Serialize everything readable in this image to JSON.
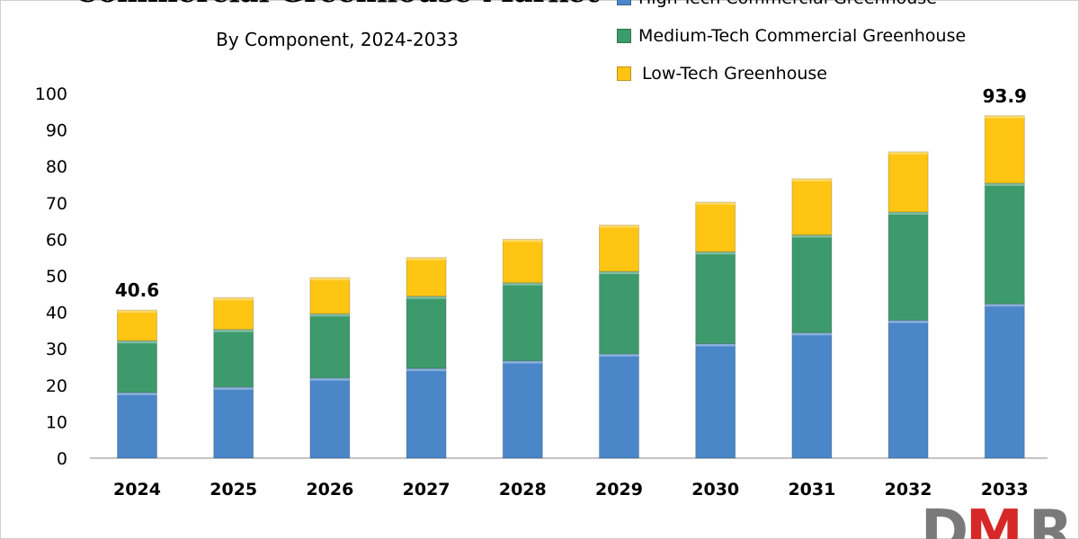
{
  "chart_data": {
    "type": "bar",
    "stacked": true,
    "title": "Commercial Greenhouse Market",
    "subtitle": "By Component,  2024-2033",
    "categories": [
      "2024",
      "2025",
      "2026",
      "2027",
      "2028",
      "2029",
      "2030",
      "2031",
      "2032",
      "2033"
    ],
    "series": [
      {
        "name": "High-Tech Commercial Greenhouse",
        "color": "#4a86c8",
        "values": [
          18.0,
          19.5,
          22.0,
          24.6,
          26.7,
          28.6,
          31.4,
          34.4,
          37.8,
          42.3
        ]
      },
      {
        "name": "Medium-Tech Commercial Greenhouse",
        "color": "#3d9a6c",
        "values": [
          14.2,
          15.8,
          17.6,
          19.8,
          21.4,
          22.6,
          25.2,
          26.8,
          29.7,
          33.1
        ]
      },
      {
        "name": "Low-Tech Greenhouse",
        "color": "#ffc512",
        "values": [
          8.4,
          8.7,
          9.9,
          10.6,
          11.9,
          12.7,
          13.6,
          15.4,
          16.5,
          18.5
        ]
      }
    ],
    "data_labels": [
      {
        "category": "2024",
        "text": "40.6"
      },
      {
        "category": "2033",
        "text": "93.9"
      }
    ],
    "y_ticks": [
      "0",
      "10",
      "20",
      "30",
      "40",
      "50",
      "60",
      "70",
      "80",
      "90",
      "100"
    ],
    "ylim": [
      0,
      100
    ],
    "xlabel": "",
    "ylabel": "",
    "grid": false,
    "legend_position": "top-right"
  },
  "logo": {
    "text": "DMR",
    "color": "#7a7a7a",
    "accent": "#d62828"
  }
}
